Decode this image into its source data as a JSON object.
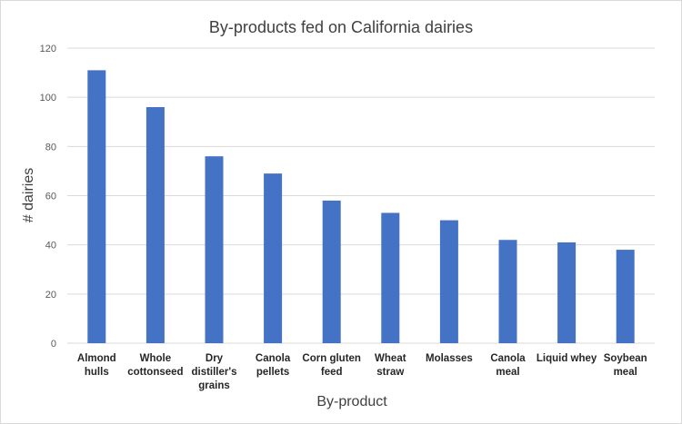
{
  "chart_data": {
    "type": "bar",
    "title": "By-products fed on California dairies",
    "xlabel": "By-product",
    "ylabel": "# dairies",
    "categories": [
      [
        "Almond",
        "hulls"
      ],
      [
        "Whole",
        "cottonseed"
      ],
      [
        "Dry",
        "distiller's",
        "grains"
      ],
      [
        "Canola",
        "pellets"
      ],
      [
        "Corn gluten",
        "feed"
      ],
      [
        "Wheat",
        "straw"
      ],
      [
        "Molasses"
      ],
      [
        "Canola",
        "meal"
      ],
      [
        "Liquid whey"
      ],
      [
        "Soybean",
        "meal"
      ]
    ],
    "values": [
      111,
      96,
      76,
      69,
      58,
      53,
      50,
      42,
      41,
      38
    ],
    "ylim": [
      0,
      120
    ],
    "yticks": [
      0,
      20,
      40,
      60,
      80,
      100,
      120
    ],
    "grid": true,
    "legend": "none",
    "bar_color": "#4472c4",
    "grid_color": "#d9d9d9"
  }
}
